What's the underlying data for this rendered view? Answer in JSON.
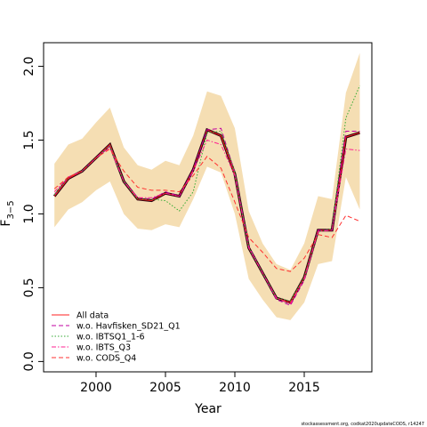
{
  "chart_data": {
    "type": "line",
    "xlabel": "Year",
    "ylabel": "F",
    "ylabel_subscript": "3−5",
    "footnote": "stockassessment.org, codkat2020updateCODS, r14247",
    "x": [
      1997,
      1998,
      1999,
      2000,
      2001,
      2002,
      2003,
      2004,
      2005,
      2006,
      2007,
      2008,
      2009,
      2010,
      2011,
      2012,
      2013,
      2014,
      2015,
      2016,
      2017,
      2018,
      2019
    ],
    "band": {
      "color": "#f5deb3",
      "upper": [
        1.34,
        1.47,
        1.51,
        1.62,
        1.72,
        1.45,
        1.33,
        1.3,
        1.36,
        1.33,
        1.53,
        1.83,
        1.8,
        1.58,
        1.02,
        0.8,
        0.66,
        0.62,
        0.8,
        1.12,
        1.1,
        1.82,
        2.09
      ],
      "lower": [
        0.91,
        1.03,
        1.08,
        1.16,
        1.22,
        1.0,
        0.9,
        0.89,
        0.93,
        0.91,
        1.1,
        1.32,
        1.28,
        1.0,
        0.56,
        0.42,
        0.3,
        0.28,
        0.4,
        0.66,
        0.68,
        1.25,
        1.03
      ]
    },
    "estimate_color": "#2a0010",
    "series": [
      {
        "name": "All data",
        "color": "#ff2020",
        "linestyle": "solid",
        "values": [
          1.12,
          1.24,
          1.29,
          1.38,
          1.47,
          1.22,
          1.1,
          1.09,
          1.14,
          1.12,
          1.3,
          1.57,
          1.53,
          1.27,
          0.77,
          0.6,
          0.43,
          0.4,
          0.57,
          0.89,
          0.89,
          1.52,
          1.55
        ]
      },
      {
        "name": "w.o. Havfisken_SD21_Q1",
        "color": "#c000a0",
        "linestyle": "dashed",
        "values": [
          1.13,
          1.25,
          1.29,
          1.38,
          1.46,
          1.22,
          1.11,
          1.1,
          1.15,
          1.12,
          1.3,
          1.57,
          1.58,
          1.28,
          0.78,
          0.6,
          0.42,
          0.38,
          0.55,
          0.89,
          0.89,
          1.56,
          1.56
        ]
      },
      {
        "name": "w.o. IBTSQ1_1-6",
        "color": "#33aa33",
        "linestyle": "dotted",
        "values": [
          1.13,
          1.25,
          1.29,
          1.38,
          1.46,
          1.22,
          1.1,
          1.1,
          1.09,
          1.02,
          1.15,
          1.55,
          1.56,
          1.28,
          0.77,
          0.6,
          0.43,
          0.41,
          0.57,
          0.88,
          0.9,
          1.65,
          1.87
        ]
      },
      {
        "name": "w.o. IBTS_Q3",
        "color": "#ff2090",
        "linestyle": "dashdot",
        "values": [
          1.15,
          1.25,
          1.29,
          1.38,
          1.45,
          1.22,
          1.11,
          1.11,
          1.14,
          1.12,
          1.29,
          1.5,
          1.47,
          1.26,
          0.77,
          0.6,
          0.43,
          0.39,
          0.56,
          0.88,
          0.89,
          1.44,
          1.43
        ]
      },
      {
        "name": "w.o. CODS_Q4",
        "color": "#ff3030",
        "linestyle": "dashed",
        "values": [
          1.17,
          1.25,
          1.29,
          1.38,
          1.44,
          1.29,
          1.18,
          1.16,
          1.16,
          1.15,
          1.26,
          1.39,
          1.31,
          1.08,
          0.84,
          0.74,
          0.63,
          0.61,
          0.7,
          0.86,
          0.84,
          0.99,
          0.95
        ]
      }
    ],
    "xlim": [
      1996.22,
      2019.87
    ],
    "ylim": [
      -0.07,
      2.16
    ],
    "xticks": [
      2000,
      2005,
      2010,
      2015
    ],
    "yticks": [
      {
        "value": 0,
        "label": "0.0"
      },
      {
        "value": 0.5,
        "label": "0.5"
      },
      {
        "value": 1,
        "label": "1.0"
      },
      {
        "value": 1.5,
        "label": "1.5"
      },
      {
        "value": 2,
        "label": "2.0"
      }
    ],
    "legend": "bottom-left"
  }
}
